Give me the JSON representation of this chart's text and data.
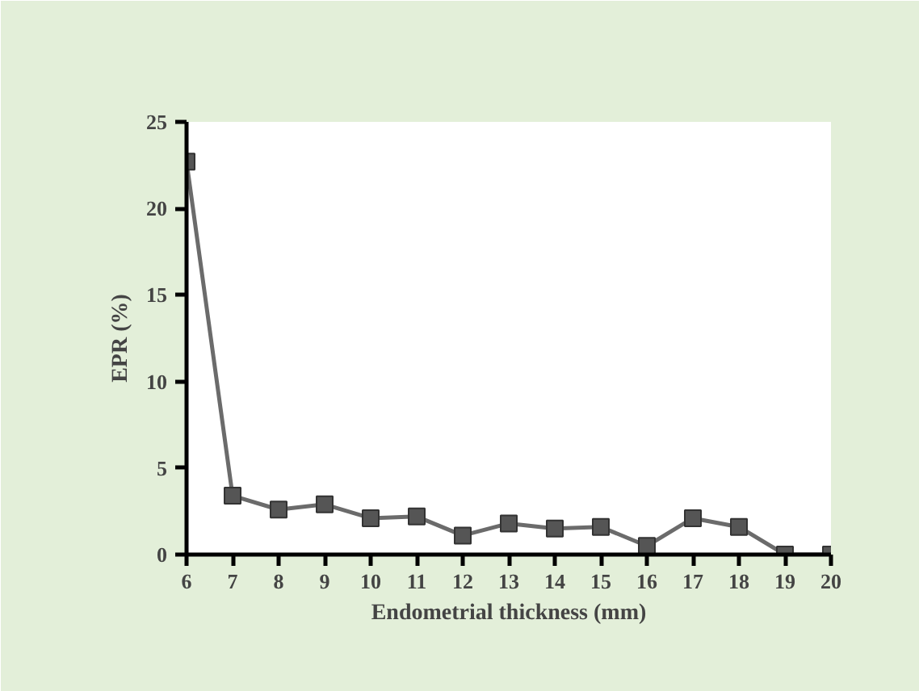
{
  "chart_data": {
    "type": "line",
    "xlabel": "Endometrial thickness (mm)",
    "ylabel": "EPR (%)",
    "x": [
      6,
      7,
      8,
      9,
      10,
      11,
      12,
      13,
      14,
      15,
      16,
      17,
      18,
      19,
      20
    ],
    "series": [
      {
        "color": "#6b6b6b",
        "values": [
          22.7,
          3.4,
          2.6,
          2.9,
          2.1,
          2.2,
          1.1,
          1.8,
          1.5,
          1.6,
          0.5,
          2.1,
          1.6,
          0,
          0
        ]
      }
    ],
    "xlim": [
      6,
      20
    ],
    "xticks": [
      6,
      7,
      8,
      9,
      10,
      11,
      12,
      13,
      14,
      15,
      16,
      17,
      18,
      19,
      20
    ],
    "ylim": [
      0,
      25
    ],
    "yticks": [
      0,
      5,
      10,
      15,
      20,
      25
    ],
    "grid": false,
    "marker": "square",
    "line_style": "solid"
  }
}
